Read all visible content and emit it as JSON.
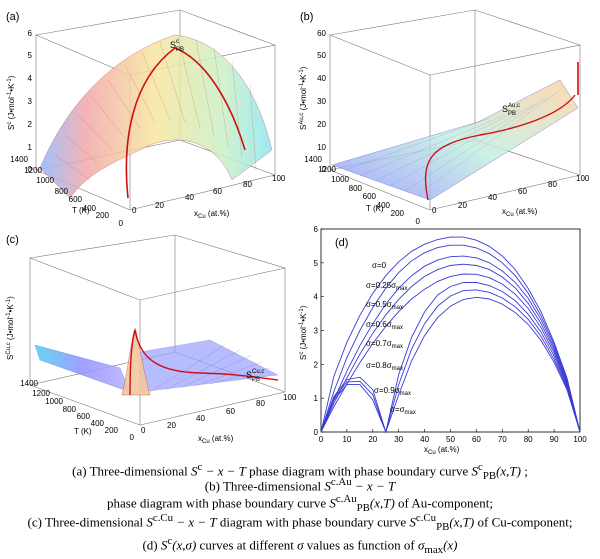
{
  "panels": {
    "a": {
      "label": "(a)",
      "ylabel": "S",
      "ylabel_sup": "c",
      "ylabel_units": "(J•mol",
      "ylabel_units_sup": "-1",
      "ylabel_units_2": "•K",
      "ylabel_units_sup_2": "-1",
      "ylabel_units_end": ")",
      "curve_label": "S",
      "curve_label_sup": "c",
      "curve_label_sub": "PB",
      "zticks": [
        "0",
        "1",
        "2",
        "3",
        "4",
        "5",
        "6"
      ],
      "tticks": [
        "1400",
        "1200",
        "1000",
        "800",
        "600",
        "400",
        "200",
        "0"
      ],
      "xticks": [
        "0",
        "20",
        "40",
        "60",
        "80",
        "100"
      ],
      "tlabel": "T  (K)",
      "xlabel": "x",
      "xlabel_sub": "Cu",
      "xlabel_units": "(at.%)"
    },
    "b": {
      "label": "(b)",
      "ylabel": "S",
      "ylabel_sup": "Au,c",
      "curve_label": "S",
      "curve_label_sup": "Au,c",
      "curve_label_sub": "PB",
      "zticks": [
        "0",
        "10",
        "20",
        "30",
        "40",
        "50",
        "60"
      ],
      "tticks": [
        "1400",
        "1200",
        "1000",
        "800",
        "600",
        "400",
        "200",
        "0"
      ],
      "xticks": [
        "0",
        "20",
        "40",
        "60",
        "80",
        "100"
      ],
      "tlabel": "T  (K)",
      "xlabel": "x",
      "xlabel_sub": "Cu",
      "xlabel_units": "(at.%)"
    },
    "c": {
      "label": "(c)",
      "ylabel": "S",
      "ylabel_sup": "Cu,c",
      "curve_label": "S",
      "curve_label_sup": "Cu,c",
      "curve_label_sub": "PB",
      "tticks": [
        "1400",
        "1200",
        "1000",
        "800",
        "600",
        "400",
        "200",
        "0"
      ],
      "xticks": [
        "0",
        "20",
        "40",
        "60",
        "80",
        "100"
      ],
      "tlabel": "T  (K)",
      "xlabel": "x",
      "xlabel_sub": "Cu",
      "xlabel_units": "(at.%)"
    },
    "d": {
      "label": "(d)",
      "ylabel": "S",
      "ylabel_sup": "c",
      "xlabel": "x",
      "xlabel_sub": "Cu",
      "xlabel_units": "(at.%)",
      "sigma_labels": [
        {
          "text": "σ=0",
          "sub": ""
        },
        {
          "text": "σ=0.25σ",
          "sub": "max"
        },
        {
          "text": "σ=0.5σ",
          "sub": "max"
        },
        {
          "text": "σ=0.6σ",
          "sub": "max"
        },
        {
          "text": "σ=0.7σ",
          "sub": "max"
        },
        {
          "text": "σ=0.8σ",
          "sub": "max"
        },
        {
          "text": "σ=0.9σ",
          "sub": "max"
        },
        {
          "text": "σ=σ",
          "sub": "max"
        }
      ]
    }
  },
  "chart_data": {
    "type": "line",
    "xlabel": "xCu (at.%)",
    "ylabel": "Sc (J•mol-1•K-1)",
    "xlim": [
      0,
      100
    ],
    "ylim": [
      0,
      6
    ],
    "xticks": [
      0,
      10,
      20,
      30,
      40,
      50,
      60,
      70,
      80,
      90,
      100
    ],
    "yticks": [
      0,
      1,
      2,
      3,
      4,
      5,
      6
    ],
    "grid": false,
    "series": [
      {
        "name": "σ=0",
        "x": [
          0,
          5,
          10,
          15,
          20,
          25,
          30,
          35,
          40,
          45,
          50,
          55,
          60,
          65,
          70,
          75,
          80,
          85,
          90,
          95,
          100
        ],
        "y": [
          0,
          1.65,
          2.65,
          3.45,
          4.1,
          4.62,
          5.03,
          5.34,
          5.55,
          5.69,
          5.76,
          5.76,
          5.67,
          5.49,
          5.2,
          4.8,
          4.24,
          3.55,
          2.65,
          1.6,
          0
        ]
      },
      {
        "name": "σ=0.25σmax",
        "x": [
          0,
          5,
          10,
          15,
          20,
          25,
          30,
          35,
          40,
          45,
          50,
          55,
          60,
          65,
          70,
          75,
          80,
          85,
          90,
          95,
          100
        ],
        "y": [
          0,
          1.2,
          2.2,
          3.0,
          3.68,
          4.25,
          4.71,
          5.06,
          5.3,
          5.45,
          5.52,
          5.52,
          5.44,
          5.27,
          5.0,
          4.62,
          4.1,
          3.43,
          2.58,
          1.55,
          0
        ]
      },
      {
        "name": "σ=0.5σmax",
        "x": [
          0,
          5,
          10,
          15,
          20,
          25,
          30,
          35,
          40,
          45,
          50,
          55,
          60,
          65,
          70,
          75,
          80,
          85,
          90,
          95,
          100
        ],
        "y": [
          0,
          0.95,
          1.8,
          2.55,
          3.2,
          3.78,
          4.25,
          4.62,
          4.9,
          5.08,
          5.18,
          5.2,
          5.15,
          5.0,
          4.76,
          4.42,
          3.95,
          3.32,
          2.5,
          1.5,
          0
        ]
      },
      {
        "name": "σ=0.6σmax",
        "x": [
          0,
          5,
          10,
          15,
          20,
          25,
          30,
          35,
          40,
          45,
          50,
          55,
          60,
          65,
          70,
          75,
          80,
          85,
          90,
          95,
          100
        ],
        "y": [
          0,
          0.85,
          1.6,
          2.3,
          2.92,
          3.46,
          3.92,
          4.3,
          4.6,
          4.8,
          4.92,
          4.96,
          4.92,
          4.8,
          4.58,
          4.26,
          3.8,
          3.2,
          2.42,
          1.45,
          0
        ]
      },
      {
        "name": "σ=0.7σmax",
        "x": [
          0,
          5,
          10,
          15,
          20,
          25,
          30,
          35,
          40,
          45,
          50,
          55,
          60,
          65,
          70,
          75,
          80,
          85,
          90,
          95,
          100
        ],
        "y": [
          0,
          0.75,
          1.42,
          2.05,
          2.62,
          3.12,
          3.56,
          3.93,
          4.22,
          4.45,
          4.6,
          4.67,
          4.66,
          4.56,
          4.37,
          4.07,
          3.65,
          3.08,
          2.34,
          1.4,
          0
        ]
      },
      {
        "name": "σ=0.8σmax",
        "x": [
          0,
          5,
          10,
          15,
          20,
          25,
          30,
          35,
          40,
          45,
          50,
          55,
          60,
          65,
          70,
          75,
          80,
          85,
          90,
          95,
          100
        ],
        "y": [
          0,
          1.05,
          1.55,
          1.62,
          1.25,
          0,
          1.7,
          2.8,
          3.55,
          4.05,
          4.3,
          4.42,
          4.42,
          4.33,
          4.15,
          3.88,
          3.48,
          2.95,
          2.25,
          1.35,
          0
        ]
      },
      {
        "name": "σ=0.9σmax",
        "x": [
          0,
          5,
          10,
          15,
          20,
          25,
          30,
          35,
          40,
          45,
          50,
          55,
          60,
          65,
          70,
          75,
          80,
          85,
          90,
          95,
          100
        ],
        "y": [
          0,
          1.0,
          1.48,
          1.5,
          1.1,
          0,
          1.4,
          2.45,
          3.2,
          3.72,
          4.02,
          4.18,
          4.2,
          4.13,
          3.96,
          3.7,
          3.33,
          2.82,
          2.15,
          1.3,
          0
        ]
      },
      {
        "name": "σ=σmax",
        "x": [
          0,
          5,
          10,
          15,
          20,
          25,
          30,
          35,
          40,
          45,
          50,
          55,
          60,
          65,
          70,
          75,
          80,
          85,
          90,
          95,
          100
        ],
        "y": [
          0,
          0.95,
          1.4,
          1.4,
          0.95,
          0,
          1.1,
          2.1,
          2.85,
          3.38,
          3.72,
          3.92,
          3.98,
          3.93,
          3.78,
          3.53,
          3.18,
          2.7,
          2.06,
          1.25,
          0
        ]
      }
    ]
  },
  "captions": {
    "a": {
      "prefix": "(a)  Three-dimensional  ",
      "formula": "S",
      "formula_sup": "c",
      "formula_rest": " − x − T",
      "middle": "  phase diagram with phase boundary curve  ",
      "curve": "S",
      "curve_sup": "c",
      "curve_sub": "PB",
      "curve_args": "(x,T)",
      "suffix": " ;"
    },
    "b": {
      "prefix": "(b)  Three-dimensional  ",
      "formula": "S",
      "formula_sup": "c.Au",
      "formula_rest": " − x − T",
      "line2_prefix": "phase diagram with phase boundary curve  ",
      "curve": "S",
      "curve_sup": "c.Au",
      "curve_sub": "PB",
      "curve_args": "(x,T)",
      "suffix": "  of Au-component;"
    },
    "c": {
      "prefix": "(c) Three-dimensional  ",
      "formula": "S",
      "formula_sup": "c.Cu",
      "formula_rest": " − x − T",
      "middle": "  diagram with phase boundary curve  ",
      "curve": "S",
      "curve_sup": "c.Cu",
      "curve_sub": "PB",
      "curve_args": "(x,T)",
      "suffix": "  of Cu-component;"
    },
    "d": {
      "prefix": "(d)  ",
      "formula": "S",
      "formula_sup": "c",
      "formula_args": "(x,σ)",
      "middle": "  curves at different ",
      "sigma": "σ",
      "middle2": " values as function of  ",
      "sigma_max": "σ",
      "sigma_max_sub": "max",
      "sigma_max_args": "(x)"
    }
  }
}
